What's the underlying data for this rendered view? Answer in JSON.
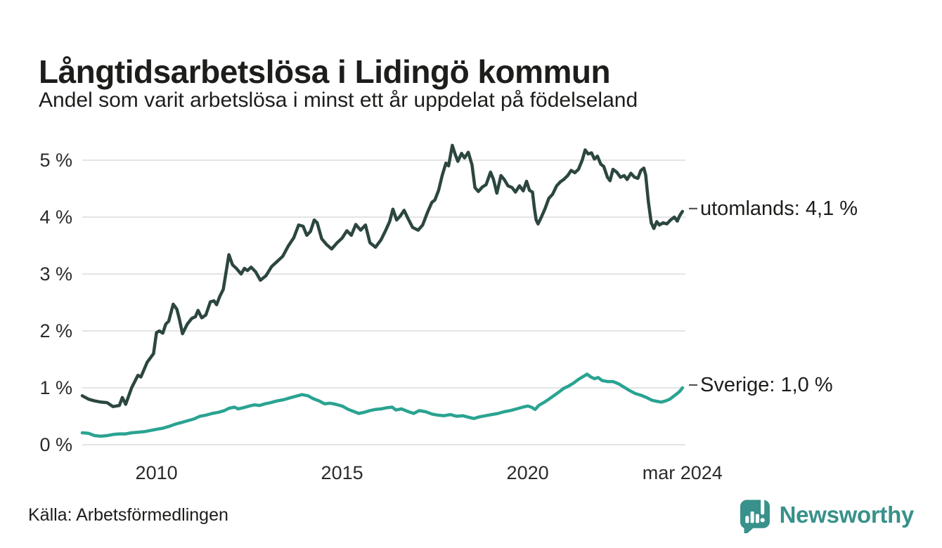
{
  "header": {
    "title": "Långtidsarbetslösa i Lidingö kommun",
    "subtitle": "Andel som varit arbetslösa i minst ett år uppdelat på födelseland"
  },
  "footer": {
    "source": "Källa: Arbetsförmedlingen",
    "brand": "Newsworthy",
    "brand_color": "#38918a",
    "brand_icon": "newsworthy-bars-pin-icon"
  },
  "colors": {
    "background": "#ffffff",
    "gridline": "#e4e4e7",
    "text": "#1d1d1b",
    "end_tick": "#555555"
  },
  "chart_data": {
    "type": "line",
    "title": "Långtidsarbetslösa i Lidingö kommun",
    "subtitle": "Andel som varit arbetslösa i minst ett år uppdelat på födelseland",
    "unit": "%",
    "grid": "horizontal",
    "legend_position": "line-end-labels",
    "x_domain": [
      2008.0,
      2024.25
    ],
    "ylim": [
      0,
      5.45
    ],
    "yticks": [
      {
        "value": 0,
        "label": "0 %"
      },
      {
        "value": 1,
        "label": "1 %"
      },
      {
        "value": 2,
        "label": "2 %"
      },
      {
        "value": 3,
        "label": "3 %"
      },
      {
        "value": 4,
        "label": "4 %"
      },
      {
        "value": 5,
        "label": "5 %"
      }
    ],
    "xticks": [
      {
        "value": 2010.0,
        "label": "2010"
      },
      {
        "value": 2015.0,
        "label": "2015"
      },
      {
        "value": 2020.0,
        "label": "2020"
      },
      {
        "value": 2024.17,
        "label": "mar 2024"
      }
    ],
    "series": [
      {
        "name": "utomlands",
        "end_label": "utomlands: 4,1 %",
        "final_value": 4.1,
        "color": "#2c4640",
        "stroke_width": 4.5,
        "points": [
          [
            2008.0,
            0.86
          ],
          [
            2008.17,
            0.8
          ],
          [
            2008.33,
            0.77
          ],
          [
            2008.5,
            0.75
          ],
          [
            2008.67,
            0.74
          ],
          [
            2008.83,
            0.67
          ],
          [
            2009.0,
            0.69
          ],
          [
            2009.08,
            0.83
          ],
          [
            2009.17,
            0.71
          ],
          [
            2009.33,
            1.0
          ],
          [
            2009.5,
            1.22
          ],
          [
            2009.58,
            1.19
          ],
          [
            2009.75,
            1.45
          ],
          [
            2009.92,
            1.6
          ],
          [
            2010.0,
            1.97
          ],
          [
            2010.08,
            2.0
          ],
          [
            2010.17,
            1.96
          ],
          [
            2010.25,
            2.12
          ],
          [
            2010.33,
            2.17
          ],
          [
            2010.45,
            2.47
          ],
          [
            2010.55,
            2.38
          ],
          [
            2010.62,
            2.2
          ],
          [
            2010.7,
            1.95
          ],
          [
            2010.83,
            2.12
          ],
          [
            2010.95,
            2.22
          ],
          [
            2011.05,
            2.25
          ],
          [
            2011.12,
            2.36
          ],
          [
            2011.22,
            2.23
          ],
          [
            2011.33,
            2.28
          ],
          [
            2011.45,
            2.51
          ],
          [
            2011.55,
            2.53
          ],
          [
            2011.62,
            2.46
          ],
          [
            2011.7,
            2.6
          ],
          [
            2011.8,
            2.73
          ],
          [
            2011.95,
            3.34
          ],
          [
            2012.05,
            3.16
          ],
          [
            2012.15,
            3.1
          ],
          [
            2012.28,
            3.0
          ],
          [
            2012.37,
            3.1
          ],
          [
            2012.45,
            3.06
          ],
          [
            2012.55,
            3.12
          ],
          [
            2012.67,
            3.04
          ],
          [
            2012.8,
            2.89
          ],
          [
            2012.95,
            2.97
          ],
          [
            2013.1,
            3.13
          ],
          [
            2013.25,
            3.22
          ],
          [
            2013.4,
            3.31
          ],
          [
            2013.55,
            3.49
          ],
          [
            2013.7,
            3.64
          ],
          [
            2013.83,
            3.86
          ],
          [
            2013.95,
            3.84
          ],
          [
            2014.05,
            3.68
          ],
          [
            2014.15,
            3.75
          ],
          [
            2014.25,
            3.95
          ],
          [
            2014.33,
            3.9
          ],
          [
            2014.45,
            3.62
          ],
          [
            2014.58,
            3.52
          ],
          [
            2014.72,
            3.44
          ],
          [
            2014.87,
            3.55
          ],
          [
            2015.0,
            3.63
          ],
          [
            2015.13,
            3.76
          ],
          [
            2015.25,
            3.68
          ],
          [
            2015.37,
            3.87
          ],
          [
            2015.5,
            3.77
          ],
          [
            2015.63,
            3.86
          ],
          [
            2015.75,
            3.55
          ],
          [
            2015.9,
            3.47
          ],
          [
            2016.05,
            3.6
          ],
          [
            2016.17,
            3.76
          ],
          [
            2016.28,
            3.92
          ],
          [
            2016.37,
            4.14
          ],
          [
            2016.47,
            3.95
          ],
          [
            2016.57,
            4.02
          ],
          [
            2016.67,
            4.12
          ],
          [
            2016.78,
            3.97
          ],
          [
            2016.9,
            3.82
          ],
          [
            2017.05,
            3.77
          ],
          [
            2017.17,
            3.86
          ],
          [
            2017.3,
            4.08
          ],
          [
            2017.42,
            4.26
          ],
          [
            2017.5,
            4.3
          ],
          [
            2017.6,
            4.47
          ],
          [
            2017.7,
            4.74
          ],
          [
            2017.8,
            4.95
          ],
          [
            2017.87,
            4.9
          ],
          [
            2017.97,
            5.26
          ],
          [
            2018.05,
            5.1
          ],
          [
            2018.12,
            4.98
          ],
          [
            2018.22,
            5.12
          ],
          [
            2018.3,
            5.04
          ],
          [
            2018.4,
            5.14
          ],
          [
            2018.5,
            4.92
          ],
          [
            2018.58,
            4.52
          ],
          [
            2018.67,
            4.45
          ],
          [
            2018.78,
            4.53
          ],
          [
            2018.88,
            4.57
          ],
          [
            2019.0,
            4.79
          ],
          [
            2019.08,
            4.66
          ],
          [
            2019.17,
            4.42
          ],
          [
            2019.28,
            4.73
          ],
          [
            2019.37,
            4.66
          ],
          [
            2019.47,
            4.55
          ],
          [
            2019.58,
            4.52
          ],
          [
            2019.67,
            4.44
          ],
          [
            2019.78,
            4.55
          ],
          [
            2019.88,
            4.46
          ],
          [
            2019.97,
            4.63
          ],
          [
            2020.05,
            4.47
          ],
          [
            2020.13,
            4.44
          ],
          [
            2020.18,
            4.16
          ],
          [
            2020.23,
            3.95
          ],
          [
            2020.28,
            3.88
          ],
          [
            2020.37,
            4.0
          ],
          [
            2020.47,
            4.15
          ],
          [
            2020.57,
            4.33
          ],
          [
            2020.67,
            4.4
          ],
          [
            2020.78,
            4.55
          ],
          [
            2020.88,
            4.62
          ],
          [
            2020.97,
            4.66
          ],
          [
            2021.08,
            4.73
          ],
          [
            2021.17,
            4.82
          ],
          [
            2021.27,
            4.78
          ],
          [
            2021.37,
            4.84
          ],
          [
            2021.47,
            5.0
          ],
          [
            2021.55,
            5.18
          ],
          [
            2021.63,
            5.11
          ],
          [
            2021.72,
            5.13
          ],
          [
            2021.8,
            5.02
          ],
          [
            2021.88,
            5.07
          ],
          [
            2021.97,
            4.93
          ],
          [
            2022.05,
            4.89
          ],
          [
            2022.15,
            4.7
          ],
          [
            2022.22,
            4.64
          ],
          [
            2022.3,
            4.84
          ],
          [
            2022.4,
            4.79
          ],
          [
            2022.5,
            4.7
          ],
          [
            2022.6,
            4.73
          ],
          [
            2022.68,
            4.66
          ],
          [
            2022.78,
            4.77
          ],
          [
            2022.88,
            4.7
          ],
          [
            2022.97,
            4.68
          ],
          [
            2023.05,
            4.82
          ],
          [
            2023.13,
            4.86
          ],
          [
            2023.18,
            4.74
          ],
          [
            2023.25,
            4.28
          ],
          [
            2023.33,
            3.9
          ],
          [
            2023.4,
            3.8
          ],
          [
            2023.48,
            3.92
          ],
          [
            2023.55,
            3.86
          ],
          [
            2023.65,
            3.9
          ],
          [
            2023.75,
            3.88
          ],
          [
            2023.85,
            3.95
          ],
          [
            2023.95,
            4.0
          ],
          [
            2024.03,
            3.93
          ],
          [
            2024.1,
            4.03
          ],
          [
            2024.17,
            4.1
          ]
        ]
      },
      {
        "name": "Sverige",
        "end_label": "Sverige: 1,0 %",
        "final_value": 1.0,
        "color": "#2aa392",
        "stroke_width": 4.5,
        "points": [
          [
            2008.0,
            0.21
          ],
          [
            2008.17,
            0.2
          ],
          [
            2008.33,
            0.16
          ],
          [
            2008.5,
            0.15
          ],
          [
            2008.67,
            0.16
          ],
          [
            2008.83,
            0.18
          ],
          [
            2009.0,
            0.19
          ],
          [
            2009.17,
            0.19
          ],
          [
            2009.33,
            0.21
          ],
          [
            2009.5,
            0.22
          ],
          [
            2009.67,
            0.23
          ],
          [
            2009.83,
            0.25
          ],
          [
            2010.0,
            0.27
          ],
          [
            2010.17,
            0.29
          ],
          [
            2010.33,
            0.32
          ],
          [
            2010.5,
            0.36
          ],
          [
            2010.67,
            0.39
          ],
          [
            2010.83,
            0.42
          ],
          [
            2011.0,
            0.45
          ],
          [
            2011.17,
            0.5
          ],
          [
            2011.33,
            0.52
          ],
          [
            2011.5,
            0.55
          ],
          [
            2011.67,
            0.57
          ],
          [
            2011.83,
            0.6
          ],
          [
            2011.95,
            0.64
          ],
          [
            2012.1,
            0.66
          ],
          [
            2012.2,
            0.63
          ],
          [
            2012.33,
            0.65
          ],
          [
            2012.5,
            0.68
          ],
          [
            2012.63,
            0.7
          ],
          [
            2012.78,
            0.69
          ],
          [
            2012.93,
            0.72
          ],
          [
            2013.08,
            0.74
          ],
          [
            2013.25,
            0.77
          ],
          [
            2013.42,
            0.79
          ],
          [
            2013.58,
            0.82
          ],
          [
            2013.75,
            0.85
          ],
          [
            2013.92,
            0.88
          ],
          [
            2014.08,
            0.86
          ],
          [
            2014.22,
            0.81
          ],
          [
            2014.38,
            0.77
          ],
          [
            2014.53,
            0.72
          ],
          [
            2014.68,
            0.73
          ],
          [
            2014.83,
            0.71
          ],
          [
            2015.0,
            0.68
          ],
          [
            2015.17,
            0.62
          ],
          [
            2015.33,
            0.58
          ],
          [
            2015.45,
            0.55
          ],
          [
            2015.6,
            0.57
          ],
          [
            2015.75,
            0.6
          ],
          [
            2015.9,
            0.62
          ],
          [
            2016.05,
            0.63
          ],
          [
            2016.2,
            0.65
          ],
          [
            2016.35,
            0.66
          ],
          [
            2016.45,
            0.61
          ],
          [
            2016.6,
            0.63
          ],
          [
            2016.75,
            0.59
          ],
          [
            2016.93,
            0.55
          ],
          [
            2017.08,
            0.6
          ],
          [
            2017.25,
            0.58
          ],
          [
            2017.42,
            0.54
          ],
          [
            2017.58,
            0.52
          ],
          [
            2017.75,
            0.51
          ],
          [
            2017.92,
            0.53
          ],
          [
            2018.08,
            0.5
          ],
          [
            2018.25,
            0.51
          ],
          [
            2018.42,
            0.48
          ],
          [
            2018.55,
            0.46
          ],
          [
            2018.7,
            0.49
          ],
          [
            2018.87,
            0.51
          ],
          [
            2019.03,
            0.53
          ],
          [
            2019.2,
            0.55
          ],
          [
            2019.37,
            0.58
          ],
          [
            2019.53,
            0.6
          ],
          [
            2019.7,
            0.63
          ],
          [
            2019.87,
            0.66
          ],
          [
            2020.0,
            0.68
          ],
          [
            2020.1,
            0.66
          ],
          [
            2020.2,
            0.62
          ],
          [
            2020.3,
            0.69
          ],
          [
            2020.43,
            0.74
          ],
          [
            2020.57,
            0.8
          ],
          [
            2020.7,
            0.86
          ],
          [
            2020.83,
            0.92
          ],
          [
            2020.97,
            0.99
          ],
          [
            2021.1,
            1.03
          ],
          [
            2021.23,
            1.08
          ],
          [
            2021.37,
            1.15
          ],
          [
            2021.5,
            1.2
          ],
          [
            2021.6,
            1.24
          ],
          [
            2021.7,
            1.19
          ],
          [
            2021.8,
            1.16
          ],
          [
            2021.9,
            1.18
          ],
          [
            2022.0,
            1.13
          ],
          [
            2022.15,
            1.11
          ],
          [
            2022.3,
            1.11
          ],
          [
            2022.45,
            1.07
          ],
          [
            2022.6,
            1.01
          ],
          [
            2022.75,
            0.95
          ],
          [
            2022.9,
            0.9
          ],
          [
            2023.05,
            0.87
          ],
          [
            2023.2,
            0.83
          ],
          [
            2023.35,
            0.78
          ],
          [
            2023.5,
            0.76
          ],
          [
            2023.6,
            0.75
          ],
          [
            2023.72,
            0.77
          ],
          [
            2023.83,
            0.8
          ],
          [
            2023.93,
            0.85
          ],
          [
            2024.03,
            0.9
          ],
          [
            2024.1,
            0.94
          ],
          [
            2024.17,
            1.0
          ]
        ]
      }
    ]
  }
}
